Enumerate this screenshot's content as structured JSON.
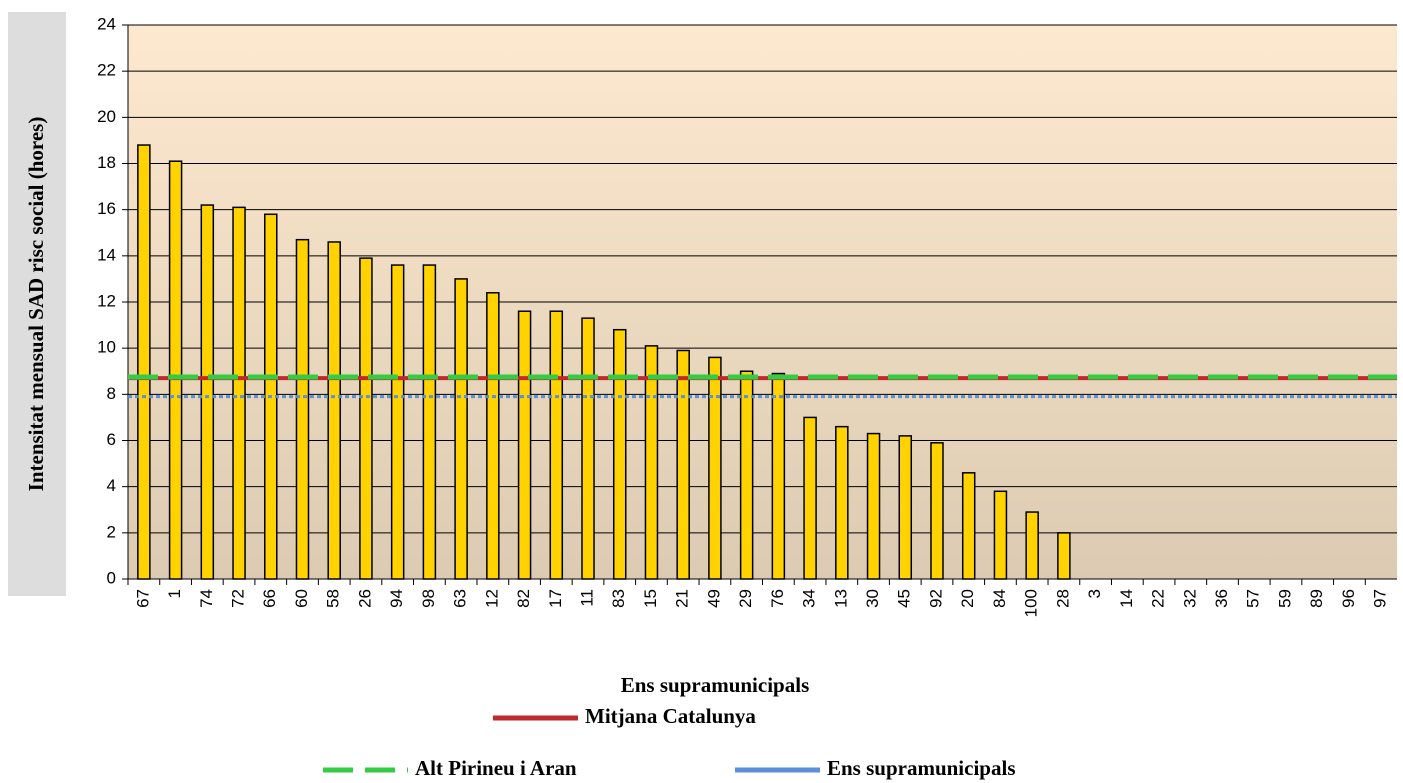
{
  "chart_data": {
    "type": "bar",
    "ylabel": "Intensitat mensual SAD risc social (hores)",
    "xlabel": "Ens supramunicipals",
    "categories": [
      "67",
      "1",
      "74",
      "72",
      "66",
      "60",
      "58",
      "26",
      "94",
      "98",
      "63",
      "12",
      "82",
      "17",
      "11",
      "83",
      "15",
      "21",
      "49",
      "29",
      "76",
      "34",
      "13",
      "30",
      "45",
      "92",
      "20",
      "84",
      "100",
      "28",
      "3",
      "14",
      "22",
      "32",
      "36",
      "57",
      "59",
      "89",
      "96",
      "97"
    ],
    "values": [
      18.8,
      18.1,
      16.2,
      16.1,
      15.8,
      14.7,
      14.6,
      13.9,
      13.6,
      13.6,
      13.0,
      12.4,
      11.6,
      11.6,
      11.3,
      10.8,
      10.1,
      9.9,
      9.6,
      9.0,
      8.9,
      7.0,
      6.6,
      6.3,
      6.2,
      5.9,
      4.6,
      3.8,
      2.9,
      2.0,
      0,
      0,
      0,
      0,
      0,
      0,
      0,
      0,
      0,
      0
    ],
    "color": "#ffd200",
    "lines": [
      {
        "name": "Mitjana Catalunya",
        "color": "#c0282d",
        "value": 8.7,
        "style": "solid"
      },
      {
        "name": "Alt Pirineu i Aran",
        "color": "#33cc44",
        "value": 8.75,
        "style": "dashed"
      },
      {
        "name": "Ens supramunicipals",
        "color": "#5b8fd9",
        "value": 7.9,
        "style": "dotted"
      }
    ],
    "ylim": [
      0,
      24
    ],
    "yticks": [
      0,
      2,
      4,
      6,
      8,
      10,
      12,
      14,
      16,
      18,
      20,
      22,
      24
    ],
    "grid": true
  }
}
